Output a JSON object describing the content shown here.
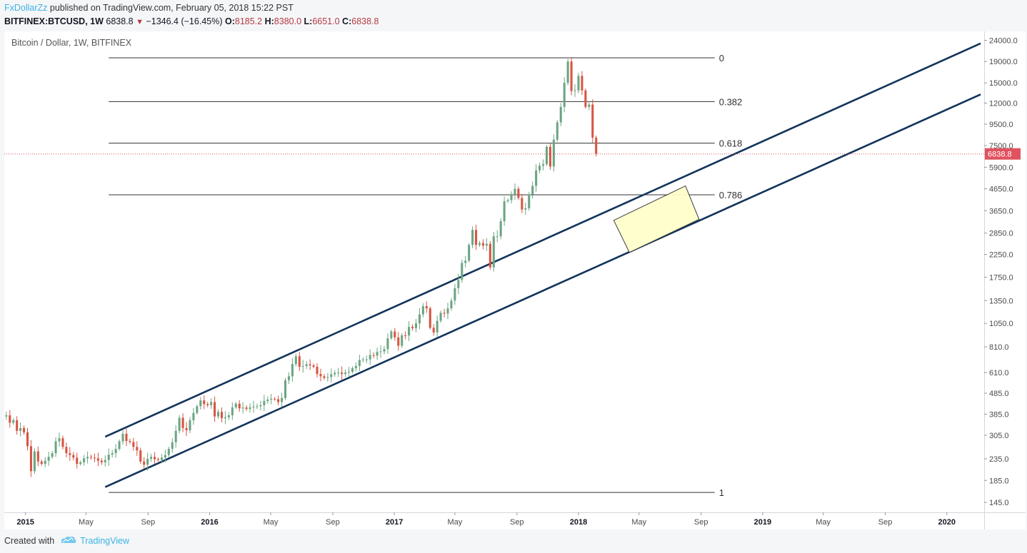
{
  "header": {
    "author": "FxDollarZz",
    "published_text": " published on TradingView.com, February 05, 2018 15:22 PST",
    "symbol": "BITFINEX:BTCUSD, 1W",
    "last": "6838.8",
    "change": "−1346.4 (−16.45%)",
    "open_label": "O:",
    "open": "8185.2",
    "high_label": "H:",
    "high": "8380.0",
    "low_label": "L:",
    "low": "6651.0",
    "close_label": "C:",
    "close": "6838.8"
  },
  "footer": {
    "created_with": "Created with",
    "brand": "TradingView"
  },
  "colors": {
    "up_candle": "#6ba583",
    "down_candle": "#d75442",
    "channel": "#12345b",
    "fib_line": "#333333",
    "price_tag": "#e0525f",
    "box_fill": "#ffffcc",
    "box_stroke": "#333333"
  },
  "chart_data": {
    "type": "candlestick",
    "title": "Bitcoin / Dollar, 1W, BITFINEX",
    "y_scale": "log",
    "ylim": [
      130,
      26500
    ],
    "xlim": [
      "2014-11-20",
      "2020-03-15"
    ],
    "y_ticks": [
      145,
      185,
      235,
      305,
      385,
      485,
      610,
      810,
      1050,
      1350,
      1750,
      2250,
      2850,
      3650,
      4650,
      5900,
      7500,
      9500,
      12000,
      15000,
      19000,
      24000
    ],
    "y_tick_labels": [
      "145.0",
      "185.0",
      "235.0",
      "305.0",
      "385.0",
      "485.0",
      "610.0",
      "810.0",
      "1050.0",
      "1350.0",
      "1750.0",
      "2250.0",
      "2850.0",
      "3650.0",
      "4650.0",
      "5900.0",
      "7500.0",
      "9500.0",
      "12000.0",
      "15000.0",
      "19000.0",
      "24000.0"
    ],
    "x_ticks": [
      {
        "date": "2015-01-01",
        "label": "2015",
        "bold": true
      },
      {
        "date": "2015-05-01",
        "label": "May",
        "bold": false
      },
      {
        "date": "2015-09-01",
        "label": "Sep",
        "bold": false
      },
      {
        "date": "2016-01-01",
        "label": "2016",
        "bold": true
      },
      {
        "date": "2016-05-01",
        "label": "May",
        "bold": false
      },
      {
        "date": "2016-09-01",
        "label": "Sep",
        "bold": false
      },
      {
        "date": "2017-01-01",
        "label": "2017",
        "bold": true
      },
      {
        "date": "2017-05-01",
        "label": "May",
        "bold": false
      },
      {
        "date": "2017-09-01",
        "label": "Sep",
        "bold": false
      },
      {
        "date": "2018-01-01",
        "label": "2018",
        "bold": true
      },
      {
        "date": "2018-05-01",
        "label": "May",
        "bold": false
      },
      {
        "date": "2018-09-01",
        "label": "Sep",
        "bold": false
      },
      {
        "date": "2019-01-01",
        "label": "2019",
        "bold": true
      },
      {
        "date": "2019-05-01",
        "label": "May",
        "bold": false
      },
      {
        "date": "2019-09-01",
        "label": "Sep",
        "bold": false
      },
      {
        "date": "2020-01-01",
        "label": "2020",
        "bold": true
      }
    ],
    "last_price": 6838.8,
    "last_price_label": "6838.8",
    "fibonacci": {
      "start": "2015-06-15",
      "end": "2018-09-28",
      "levels": [
        {
          "label": "0",
          "price": 19800
        },
        {
          "label": "0.382",
          "price": 12200
        },
        {
          "label": "0.618",
          "price": 7700
        },
        {
          "label": "0.786",
          "price": 4350
        },
        {
          "label": "1",
          "price": 162
        }
      ]
    },
    "channel_lines": [
      {
        "from": {
          "date": "2015-06-08",
          "price": 300
        },
        "to": {
          "date": "2020-03-08",
          "price": 23200
        }
      },
      {
        "from": {
          "date": "2015-06-08",
          "price": 172
        },
        "to": {
          "date": "2020-03-08",
          "price": 13200
        }
      }
    ],
    "target_box": [
      {
        "date": "2018-03-12",
        "price": 3280
      },
      {
        "date": "2018-08-01",
        "price": 4800
      },
      {
        "date": "2018-08-28",
        "price": 3320
      },
      {
        "date": "2018-04-12",
        "price": 2300
      }
    ],
    "weekly_closes": [
      {
        "date": "2014-11-17",
        "close": 375
      },
      {
        "date": "2014-11-24",
        "close": 380
      },
      {
        "date": "2014-12-01",
        "close": 350
      },
      {
        "date": "2014-12-08",
        "close": 360
      },
      {
        "date": "2014-12-15",
        "close": 320
      },
      {
        "date": "2014-12-22",
        "close": 330
      },
      {
        "date": "2014-12-29",
        "close": 315
      },
      {
        "date": "2015-01-05",
        "close": 270
      },
      {
        "date": "2015-01-12",
        "close": 205
      },
      {
        "date": "2015-01-19",
        "close": 255
      },
      {
        "date": "2015-01-26",
        "close": 228
      },
      {
        "date": "2015-02-02",
        "close": 222
      },
      {
        "date": "2015-02-09",
        "close": 230
      },
      {
        "date": "2015-02-16",
        "close": 240
      },
      {
        "date": "2015-02-23",
        "close": 250
      },
      {
        "date": "2015-03-02",
        "close": 285
      },
      {
        "date": "2015-03-09",
        "close": 295
      },
      {
        "date": "2015-03-16",
        "close": 268
      },
      {
        "date": "2015-03-23",
        "close": 250
      },
      {
        "date": "2015-03-30",
        "close": 245
      },
      {
        "date": "2015-04-06",
        "close": 238
      },
      {
        "date": "2015-04-13",
        "close": 222
      },
      {
        "date": "2015-04-20",
        "close": 226
      },
      {
        "date": "2015-04-27",
        "close": 236
      },
      {
        "date": "2015-05-04",
        "close": 240
      },
      {
        "date": "2015-05-11",
        "close": 238
      },
      {
        "date": "2015-05-18",
        "close": 236
      },
      {
        "date": "2015-05-25",
        "close": 230
      },
      {
        "date": "2015-06-01",
        "close": 226
      },
      {
        "date": "2015-06-08",
        "close": 232
      },
      {
        "date": "2015-06-15",
        "close": 246
      },
      {
        "date": "2015-06-22",
        "close": 250
      },
      {
        "date": "2015-06-29",
        "close": 262
      },
      {
        "date": "2015-07-06",
        "close": 285
      },
      {
        "date": "2015-07-13",
        "close": 310
      },
      {
        "date": "2015-07-20",
        "close": 286
      },
      {
        "date": "2015-07-27",
        "close": 283
      },
      {
        "date": "2015-08-03",
        "close": 268
      },
      {
        "date": "2015-08-10",
        "close": 258
      },
      {
        "date": "2015-08-17",
        "close": 228
      },
      {
        "date": "2015-08-24",
        "close": 220
      },
      {
        "date": "2015-08-31",
        "close": 235
      },
      {
        "date": "2015-09-07",
        "close": 240
      },
      {
        "date": "2015-09-14",
        "close": 234
      },
      {
        "date": "2015-09-21",
        "close": 232
      },
      {
        "date": "2015-09-28",
        "close": 238
      },
      {
        "date": "2015-10-05",
        "close": 245
      },
      {
        "date": "2015-10-12",
        "close": 262
      },
      {
        "date": "2015-10-19",
        "close": 282
      },
      {
        "date": "2015-10-26",
        "close": 320
      },
      {
        "date": "2015-11-02",
        "close": 370
      },
      {
        "date": "2015-11-09",
        "close": 330
      },
      {
        "date": "2015-11-16",
        "close": 322
      },
      {
        "date": "2015-11-23",
        "close": 360
      },
      {
        "date": "2015-11-30",
        "close": 390
      },
      {
        "date": "2015-12-07",
        "close": 420
      },
      {
        "date": "2015-12-14",
        "close": 448
      },
      {
        "date": "2015-12-21",
        "close": 430
      },
      {
        "date": "2015-12-28",
        "close": 425
      },
      {
        "date": "2016-01-04",
        "close": 440
      },
      {
        "date": "2016-01-11",
        "close": 375
      },
      {
        "date": "2016-01-18",
        "close": 395
      },
      {
        "date": "2016-01-25",
        "close": 368
      },
      {
        "date": "2016-02-01",
        "close": 372
      },
      {
        "date": "2016-02-08",
        "close": 380
      },
      {
        "date": "2016-02-15",
        "close": 415
      },
      {
        "date": "2016-02-22",
        "close": 432
      },
      {
        "date": "2016-02-29",
        "close": 410
      },
      {
        "date": "2016-03-07",
        "close": 414
      },
      {
        "date": "2016-03-14",
        "close": 408
      },
      {
        "date": "2016-03-21",
        "close": 415
      },
      {
        "date": "2016-03-28",
        "close": 418
      },
      {
        "date": "2016-04-04",
        "close": 420
      },
      {
        "date": "2016-04-11",
        "close": 425
      },
      {
        "date": "2016-04-18",
        "close": 445
      },
      {
        "date": "2016-04-25",
        "close": 452
      },
      {
        "date": "2016-05-02",
        "close": 456
      },
      {
        "date": "2016-05-09",
        "close": 454
      },
      {
        "date": "2016-05-16",
        "close": 440
      },
      {
        "date": "2016-05-23",
        "close": 460
      },
      {
        "date": "2016-05-30",
        "close": 560
      },
      {
        "date": "2016-06-06",
        "close": 585
      },
      {
        "date": "2016-06-13",
        "close": 670
      },
      {
        "date": "2016-06-20",
        "close": 730
      },
      {
        "date": "2016-06-27",
        "close": 650
      },
      {
        "date": "2016-07-04",
        "close": 655
      },
      {
        "date": "2016-07-11",
        "close": 668
      },
      {
        "date": "2016-07-18",
        "close": 660
      },
      {
        "date": "2016-07-25",
        "close": 650
      },
      {
        "date": "2016-08-01",
        "close": 600
      },
      {
        "date": "2016-08-08",
        "close": 585
      },
      {
        "date": "2016-08-15",
        "close": 575
      },
      {
        "date": "2016-08-22",
        "close": 580
      },
      {
        "date": "2016-08-29",
        "close": 598
      },
      {
        "date": "2016-09-05",
        "close": 608
      },
      {
        "date": "2016-09-12",
        "close": 610
      },
      {
        "date": "2016-09-19",
        "close": 600
      },
      {
        "date": "2016-09-26",
        "close": 610
      },
      {
        "date": "2016-10-03",
        "close": 615
      },
      {
        "date": "2016-10-10",
        "close": 640
      },
      {
        "date": "2016-10-17",
        "close": 655
      },
      {
        "date": "2016-10-24",
        "close": 700
      },
      {
        "date": "2016-10-31",
        "close": 705
      },
      {
        "date": "2016-11-07",
        "close": 705
      },
      {
        "date": "2016-11-14",
        "close": 740
      },
      {
        "date": "2016-11-21",
        "close": 735
      },
      {
        "date": "2016-11-28",
        "close": 765
      },
      {
        "date": "2016-12-05",
        "close": 770
      },
      {
        "date": "2016-12-12",
        "close": 790
      },
      {
        "date": "2016-12-19",
        "close": 890
      },
      {
        "date": "2016-12-26",
        "close": 960
      },
      {
        "date": "2017-01-02",
        "close": 900
      },
      {
        "date": "2017-01-09",
        "close": 820
      },
      {
        "date": "2017-01-16",
        "close": 920
      },
      {
        "date": "2017-01-23",
        "close": 918
      },
      {
        "date": "2017-01-30",
        "close": 1010
      },
      {
        "date": "2017-02-06",
        "close": 995
      },
      {
        "date": "2017-02-13",
        "close": 1050
      },
      {
        "date": "2017-02-20",
        "close": 1160
      },
      {
        "date": "2017-02-27",
        "close": 1270
      },
      {
        "date": "2017-03-06",
        "close": 1240
      },
      {
        "date": "2017-03-13",
        "close": 1000
      },
      {
        "date": "2017-03-20",
        "close": 950
      },
      {
        "date": "2017-03-27",
        "close": 1080
      },
      {
        "date": "2017-04-03",
        "close": 1180
      },
      {
        "date": "2017-04-10",
        "close": 1170
      },
      {
        "date": "2017-04-17",
        "close": 1240
      },
      {
        "date": "2017-04-24",
        "close": 1350
      },
      {
        "date": "2017-05-01",
        "close": 1550
      },
      {
        "date": "2017-05-08",
        "close": 1700
      },
      {
        "date": "2017-05-15",
        "close": 2050
      },
      {
        "date": "2017-05-22",
        "close": 2100
      },
      {
        "date": "2017-05-29",
        "close": 2500
      },
      {
        "date": "2017-06-05",
        "close": 2950
      },
      {
        "date": "2017-06-12",
        "close": 2500
      },
      {
        "date": "2017-06-19",
        "close": 2550
      },
      {
        "date": "2017-06-26",
        "close": 2480
      },
      {
        "date": "2017-07-03",
        "close": 2530
      },
      {
        "date": "2017-07-10",
        "close": 1950
      },
      {
        "date": "2017-07-17",
        "close": 2750
      },
      {
        "date": "2017-07-24",
        "close": 2750
      },
      {
        "date": "2017-07-31",
        "close": 3250
      },
      {
        "date": "2017-08-07",
        "close": 4050
      },
      {
        "date": "2017-08-14",
        "close": 4100
      },
      {
        "date": "2017-08-21",
        "close": 4350
      },
      {
        "date": "2017-08-28",
        "close": 4650
      },
      {
        "date": "2017-09-04",
        "close": 4200
      },
      {
        "date": "2017-09-11",
        "close": 3700
      },
      {
        "date": "2017-09-18",
        "close": 3750
      },
      {
        "date": "2017-09-25",
        "close": 4370
      },
      {
        "date": "2017-10-02",
        "close": 4800
      },
      {
        "date": "2017-10-09",
        "close": 5700
      },
      {
        "date": "2017-10-16",
        "close": 6000
      },
      {
        "date": "2017-10-23",
        "close": 6100
      },
      {
        "date": "2017-10-30",
        "close": 7400
      },
      {
        "date": "2017-11-06",
        "close": 5950
      },
      {
        "date": "2017-11-13",
        "close": 8000
      },
      {
        "date": "2017-11-20",
        "close": 9700
      },
      {
        "date": "2017-11-27",
        "close": 11500
      },
      {
        "date": "2017-12-04",
        "close": 15000
      },
      {
        "date": "2017-12-11",
        "close": 19000
      },
      {
        "date": "2017-12-18",
        "close": 13700
      },
      {
        "date": "2017-12-25",
        "close": 13800
      },
      {
        "date": "2018-01-01",
        "close": 16200
      },
      {
        "date": "2018-01-08",
        "close": 13800
      },
      {
        "date": "2018-01-15",
        "close": 11500
      },
      {
        "date": "2018-01-22",
        "close": 11800
      },
      {
        "date": "2018-01-29",
        "close": 8185.2
      }
    ],
    "last_candle": {
      "date": "2018-02-05",
      "open": 8185.2,
      "high": 8380.0,
      "low": 6651.0,
      "close": 6838.8
    }
  }
}
